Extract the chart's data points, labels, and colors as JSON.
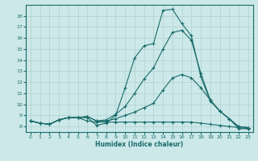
{
  "title": "",
  "xlabel": "Humidex (Indice chaleur)",
  "ylabel": "",
  "bg_color": "#cce8e8",
  "grid_color": "#b0d0d0",
  "line_color": "#1a6b6b",
  "xlim": [
    -0.5,
    23.5
  ],
  "ylim": [
    7.5,
    19.0
  ],
  "xticks": [
    0,
    1,
    2,
    3,
    4,
    5,
    6,
    7,
    8,
    9,
    10,
    11,
    12,
    13,
    14,
    15,
    16,
    17,
    18,
    19,
    20,
    21,
    22,
    23
  ],
  "yticks": [
    8,
    9,
    10,
    11,
    12,
    13,
    14,
    15,
    16,
    17,
    18
  ],
  "lines": [
    {
      "x": [
        0,
        1,
        2,
        3,
        4,
        5,
        6,
        7,
        8,
        9,
        10,
        11,
        12,
        13,
        14,
        15,
        16,
        17,
        18,
        19,
        20,
        21,
        22,
        23
      ],
      "y": [
        8.5,
        8.3,
        8.2,
        8.6,
        8.8,
        8.8,
        8.8,
        8.1,
        8.3,
        9.0,
        11.5,
        14.2,
        15.3,
        15.5,
        18.5,
        18.6,
        17.3,
        16.2,
        12.5,
        10.3,
        9.4,
        8.7,
        7.8,
        7.8
      ]
    },
    {
      "x": [
        0,
        1,
        2,
        3,
        4,
        5,
        6,
        7,
        8,
        9,
        10,
        11,
        12,
        13,
        14,
        15,
        16,
        17,
        18,
        19,
        20,
        21,
        22,
        23
      ],
      "y": [
        8.5,
        8.3,
        8.2,
        8.6,
        8.8,
        8.8,
        8.9,
        8.5,
        8.6,
        9.1,
        9.8,
        11.0,
        12.3,
        13.3,
        15.0,
        16.5,
        16.7,
        15.8,
        12.8,
        10.4,
        9.4,
        8.7,
        8.0,
        7.9
      ]
    },
    {
      "x": [
        0,
        1,
        2,
        3,
        4,
        5,
        6,
        7,
        8,
        9,
        10,
        11,
        12,
        13,
        14,
        15,
        16,
        17,
        18,
        19,
        20,
        21,
        22,
        23
      ],
      "y": [
        8.5,
        8.3,
        8.2,
        8.6,
        8.8,
        8.8,
        8.9,
        8.5,
        8.5,
        8.7,
        9.0,
        9.3,
        9.7,
        10.1,
        11.3,
        12.4,
        12.7,
        12.4,
        11.5,
        10.4,
        9.4,
        8.7,
        8.0,
        7.9
      ]
    },
    {
      "x": [
        0,
        1,
        2,
        3,
        4,
        5,
        6,
        7,
        8,
        9,
        10,
        11,
        12,
        13,
        14,
        15,
        16,
        17,
        18,
        19,
        20,
        21,
        22,
        23
      ],
      "y": [
        8.5,
        8.3,
        8.2,
        8.6,
        8.8,
        8.8,
        8.5,
        8.4,
        8.4,
        8.4,
        8.4,
        8.4,
        8.4,
        8.4,
        8.4,
        8.4,
        8.4,
        8.4,
        8.3,
        8.2,
        8.1,
        8.0,
        7.9,
        7.8
      ]
    }
  ]
}
